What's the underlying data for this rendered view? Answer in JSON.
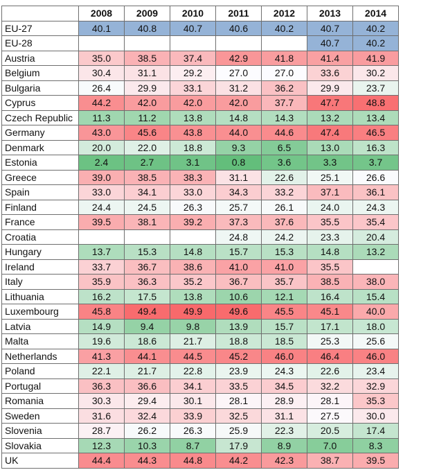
{
  "table": {
    "headers": [
      "",
      "2008",
      "2009",
      "2010",
      "2011",
      "2012",
      "2013",
      "2014"
    ],
    "rows": [
      {
        "country": "EU-27",
        "values": [
          "40.1",
          "40.8",
          "40.7",
          "40.6",
          "40.2",
          "40.7",
          "40.2"
        ]
      },
      {
        "country": "EU-28",
        "values": [
          "",
          "",
          "",
          "",
          "",
          "40.7",
          "40.2"
        ]
      },
      {
        "country": "Austria",
        "values": [
          "35.0",
          "38.5",
          "37.4",
          "42.9",
          "41.8",
          "41.4",
          "41.9"
        ]
      },
      {
        "country": "Belgium",
        "values": [
          "30.4",
          "31.1",
          "29.2",
          "27.0",
          "27.0",
          "33.6",
          "30.2"
        ]
      },
      {
        "country": "Bulgaria",
        "values": [
          "26.4",
          "29.9",
          "33.1",
          "31.2",
          "36.2",
          "29.9",
          "23.7"
        ]
      },
      {
        "country": "Cyprus",
        "values": [
          "44.2",
          "42.0",
          "42.0",
          "42.0",
          "37.7",
          "47.7",
          "48.8"
        ]
      },
      {
        "country": "Czech Republic",
        "values": [
          "11.3",
          "11.2",
          "13.8",
          "14.8",
          "14.3",
          "13.2",
          "13.4"
        ]
      },
      {
        "country": "Germany",
        "values": [
          "43.0",
          "45.6",
          "43.8",
          "44.0",
          "44.6",
          "47.4",
          "46.5"
        ]
      },
      {
        "country": "Denmark",
        "values": [
          "20.0",
          "22.0",
          "18.8",
          "9.3",
          "6.5",
          "13.0",
          "16.3"
        ]
      },
      {
        "country": "Estonia",
        "values": [
          "2.4",
          "2.7",
          "3.1",
          "0.8",
          "3.6",
          "3.3",
          "3.7"
        ]
      },
      {
        "country": "Greece",
        "values": [
          "39.0",
          "38.5",
          "38.3",
          "31.1",
          "22.6",
          "25.1",
          "26.6"
        ]
      },
      {
        "country": "Spain",
        "values": [
          "33.0",
          "34.1",
          "33.0",
          "34.3",
          "33.2",
          "37.1",
          "36.1"
        ]
      },
      {
        "country": "Finland",
        "values": [
          "24.4",
          "24.5",
          "26.3",
          "25.7",
          "26.1",
          "24.0",
          "24.3"
        ]
      },
      {
        "country": "France",
        "values": [
          "39.5",
          "38.1",
          "39.2",
          "37.3",
          "37.6",
          "35.5",
          "35.4"
        ]
      },
      {
        "country": "Croatia",
        "values": [
          "",
          "",
          "",
          "24.8",
          "24.2",
          "23.3",
          "20.4"
        ]
      },
      {
        "country": "Hungary",
        "values": [
          "13.7",
          "15.3",
          "14.8",
          "15.7",
          "15.3",
          "14.8",
          "13.2"
        ]
      },
      {
        "country": "Ireland",
        "values": [
          "33.7",
          "36.7",
          "38.6",
          "41.0",
          "41.0",
          "35.5",
          ""
        ]
      },
      {
        "country": "Italy",
        "values": [
          "35.9",
          "36.3",
          "35.2",
          "36.7",
          "35.7",
          "38.5",
          "38.0"
        ]
      },
      {
        "country": "Lithuania",
        "values": [
          "16.2",
          "17.5",
          "13.8",
          "10.6",
          "12.1",
          "16.4",
          "15.4"
        ]
      },
      {
        "country": "Luxembourg",
        "values": [
          "45.8",
          "49.4",
          "49.9",
          "49.6",
          "45.5",
          "45.1",
          "40.0"
        ]
      },
      {
        "country": "Latvia",
        "values": [
          "14.9",
          "9.4",
          "9.8",
          "13.9",
          "15.7",
          "17.1",
          "18.0"
        ]
      },
      {
        "country": "Malta",
        "values": [
          "19.6",
          "18.6",
          "21.7",
          "18.8",
          "18.5",
          "25.3",
          "25.6"
        ]
      },
      {
        "country": "Netherlands",
        "values": [
          "41.3",
          "44.1",
          "44.5",
          "45.2",
          "46.0",
          "46.4",
          "46.0"
        ]
      },
      {
        "country": "Poland",
        "values": [
          "22.1",
          "21.7",
          "22.8",
          "23.9",
          "24.3",
          "22.6",
          "23.4"
        ]
      },
      {
        "country": "Portugal",
        "values": [
          "36.3",
          "36.6",
          "34.1",
          "33.5",
          "34.5",
          "32.2",
          "32.9"
        ]
      },
      {
        "country": "Romania",
        "values": [
          "30.3",
          "29.4",
          "30.1",
          "28.1",
          "28.9",
          "28.1",
          "35.3"
        ]
      },
      {
        "country": "Sweden",
        "values": [
          "31.6",
          "32.4",
          "33.9",
          "32.5",
          "31.1",
          "27.5",
          "30.0"
        ]
      },
      {
        "country": "Slovenia",
        "values": [
          "28.7",
          "26.2",
          "26.3",
          "25.9",
          "22.3",
          "20.5",
          "17.4"
        ]
      },
      {
        "country": "Slovakia",
        "values": [
          "12.3",
          "10.3",
          "8.7",
          "17.9",
          "8.9",
          "7.0",
          "8.3"
        ]
      },
      {
        "country": "UK",
        "values": [
          "44.4",
          "44.3",
          "44.8",
          "44.2",
          "42.3",
          "38.7",
          "39.5"
        ]
      }
    ]
  },
  "colors": {
    "eu_highlight": "#95b3d7",
    "scale_low": "#63be7b",
    "scale_mid": "#fcfcff",
    "scale_high": "#f8696b",
    "border": "#6e6e6e"
  },
  "scale": {
    "min": 0.8,
    "mid": 27.0,
    "max": 49.9
  }
}
